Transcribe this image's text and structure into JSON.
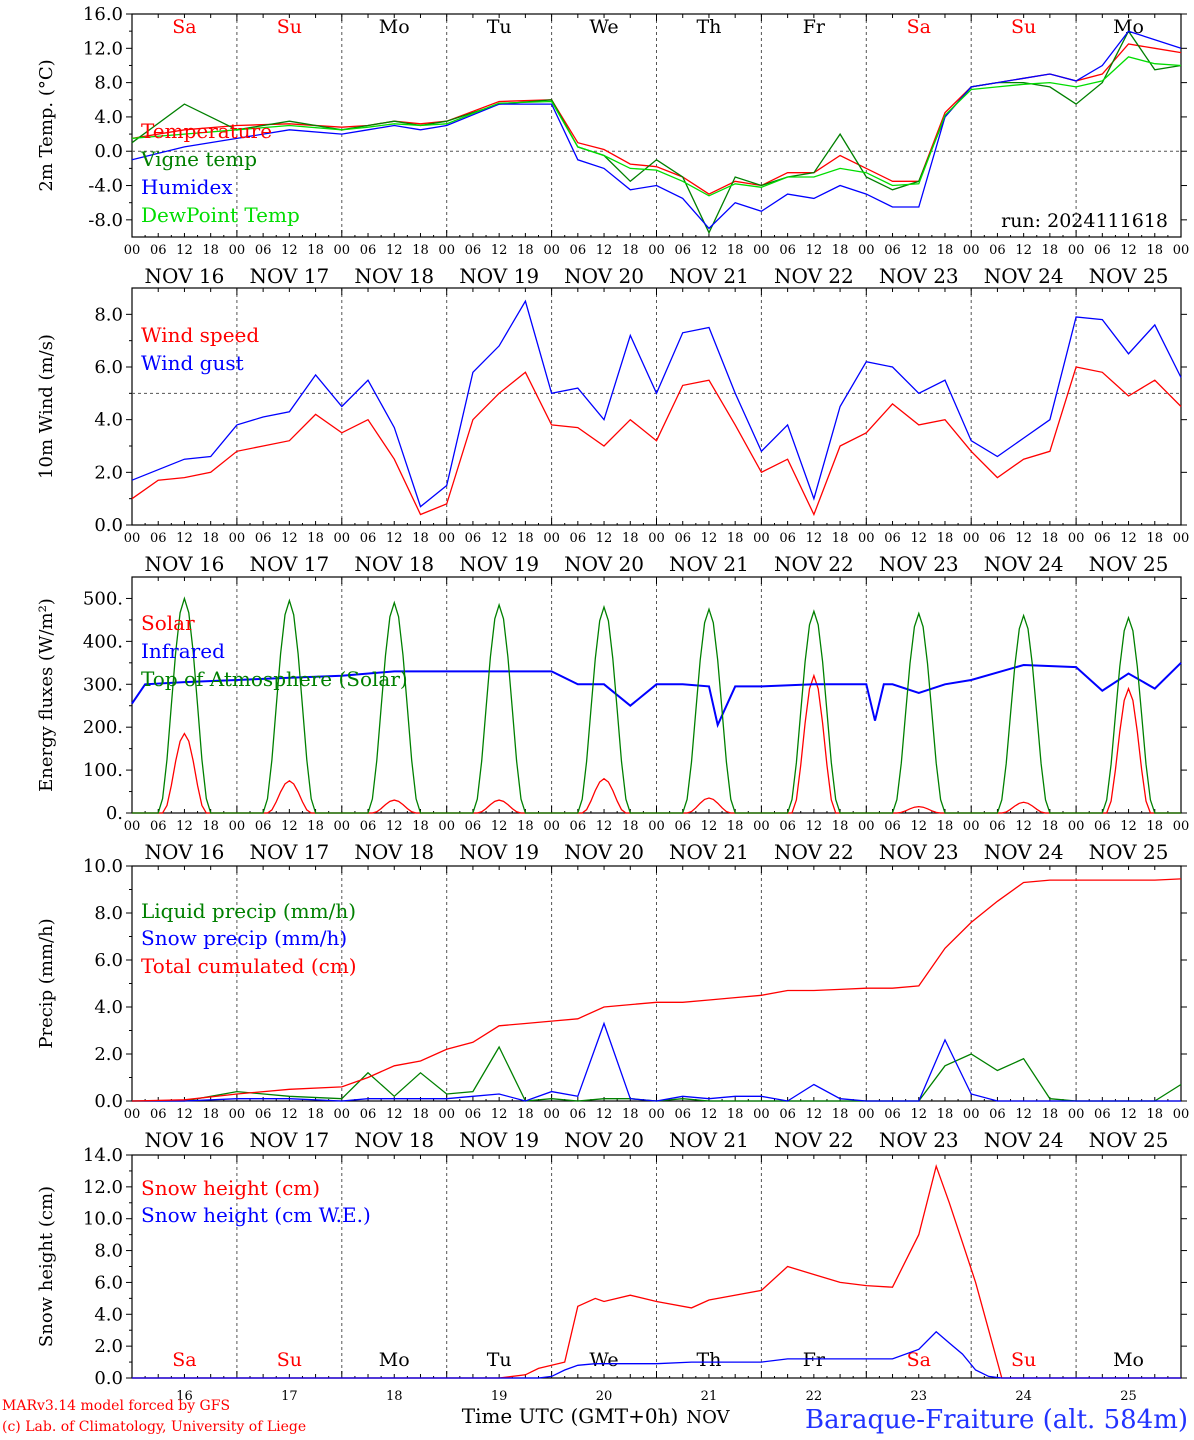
{
  "colors": {
    "red": "#ff0000",
    "green": "#008000",
    "blue": "#0000ff",
    "lime": "#00dd00",
    "grid": "#555555"
  },
  "footer": {
    "model": "MARv3.14 model forced by GFS",
    "lab": "(c) Lab. of Climatology, University of Liege",
    "time_label": "Time UTC (GMT+0h)",
    "month": "NOV",
    "station": "Baraque-Fraiture (alt. 584m)"
  },
  "run_label": "run: 2024111618",
  "days": {
    "abbr": [
      "Sa",
      "Su",
      "Mo",
      "Tu",
      "We",
      "Th",
      "Fr",
      "Sa",
      "Su",
      "Mo"
    ],
    "abbr_colors": [
      "#ff0000",
      "#ff0000",
      "#000000",
      "#000000",
      "#000000",
      "#000000",
      "#000000",
      "#ff0000",
      "#ff0000",
      "#000000"
    ],
    "dates": [
      "NOV 16",
      "NOV 17",
      "NOV 18",
      "NOV 19",
      "NOV 20",
      "NOV 21",
      "NOV 22",
      "NOV 23",
      "NOV 24",
      "NOV 25"
    ],
    "day_numbers": [
      "16",
      "17",
      "18",
      "19",
      "20",
      "21",
      "22",
      "23",
      "24",
      "25"
    ],
    "hour_ticks": [
      "00",
      "06",
      "12",
      "18"
    ],
    "end_tick": "00"
  },
  "chart_data": [
    {
      "type": "line",
      "ylabel": "2m Temp. (°C)",
      "ylim": [
        -10,
        16
      ],
      "yticks": [
        "-8.0",
        "-4.0",
        "0.0",
        "4.0",
        "8.0",
        "12.0",
        "16.0"
      ],
      "ytick_values": [
        -8,
        -4,
        0,
        4,
        8,
        12,
        16
      ],
      "ref_line": 0,
      "x_hours": [
        0,
        12,
        24,
        36,
        48,
        54,
        60,
        66,
        72,
        84,
        96,
        102,
        108,
        114,
        120,
        126,
        132,
        138,
        144,
        150,
        156,
        162,
        168,
        174,
        180,
        186,
        192,
        198,
        204,
        210,
        216,
        222,
        228,
        234,
        240
      ],
      "series": [
        {
          "name": "Temperature",
          "color": "#ff0000",
          "values": [
            1.5,
            2.5,
            3.0,
            3.2,
            2.8,
            3.0,
            3.5,
            3.2,
            3.5,
            5.8,
            6.0,
            1.0,
            0.2,
            -1.5,
            -1.8,
            -3.0,
            -5.0,
            -3.5,
            -4.0,
            -2.5,
            -2.5,
            -0.5,
            -2.0,
            -3.5,
            -3.5,
            4.5,
            7.5,
            8.0,
            8.5,
            9.0,
            8.2,
            9.0,
            12.5,
            12.0,
            11.5
          ]
        },
        {
          "name": "Vigne temp",
          "color": "#008000",
          "values": [
            1.0,
            5.5,
            2.5,
            3.5,
            2.5,
            3.0,
            3.5,
            3.0,
            3.5,
            5.5,
            6.0,
            0.5,
            -0.5,
            -3.5,
            -1.0,
            -3.0,
            -9.5,
            -3.0,
            -4.0,
            -3.0,
            -2.5,
            2.0,
            -3.0,
            -4.5,
            -3.5,
            4.0,
            7.5,
            8.0,
            8.0,
            7.5,
            5.5,
            8.0,
            14.0,
            9.5,
            10.0
          ]
        },
        {
          "name": "Humidex",
          "color": "#0000ff",
          "values": [
            -1.0,
            0.5,
            1.5,
            2.5,
            2.0,
            2.5,
            3.0,
            2.5,
            3.0,
            5.5,
            5.5,
            -1.0,
            -2.0,
            -4.5,
            -4.0,
            -5.5,
            -9.0,
            -6.0,
            -7.0,
            -5.0,
            -5.5,
            -4.0,
            -5.0,
            -6.5,
            -6.5,
            4.0,
            7.5,
            8.0,
            8.5,
            9.0,
            8.2,
            10.0,
            14.0,
            13.0,
            12.0
          ]
        },
        {
          "name": "DewPoint Temp",
          "color": "#00dd00",
          "values": [
            1.5,
            2.0,
            2.5,
            3.0,
            2.5,
            2.8,
            3.2,
            3.0,
            3.2,
            5.6,
            5.8,
            0.5,
            -0.5,
            -2.0,
            -2.2,
            -3.5,
            -5.2,
            -3.8,
            -4.2,
            -3.0,
            -3.0,
            -2.0,
            -2.5,
            -4.0,
            -3.8,
            4.2,
            7.2,
            7.5,
            7.8,
            8.0,
            7.5,
            8.2,
            11.0,
            10.2,
            10.0
          ]
        }
      ]
    },
    {
      "type": "line",
      "ylabel": "10m Wind (m/s)",
      "ylim": [
        0,
        9
      ],
      "yticks": [
        "0.0",
        "2.0",
        "4.0",
        "6.0",
        "8.0"
      ],
      "ytick_values": [
        0,
        2,
        4,
        6,
        8
      ],
      "ref_line": 5,
      "x_hours": [
        0,
        6,
        12,
        18,
        24,
        30,
        36,
        42,
        48,
        54,
        60,
        66,
        72,
        78,
        84,
        90,
        96,
        102,
        108,
        114,
        120,
        126,
        132,
        138,
        144,
        150,
        156,
        162,
        168,
        174,
        180,
        186,
        192,
        198,
        204,
        210,
        216,
        222,
        228,
        234,
        240
      ],
      "series": [
        {
          "name": "Wind speed",
          "color": "#ff0000",
          "values": [
            1.0,
            1.7,
            1.8,
            2.0,
            2.8,
            3.0,
            3.2,
            4.2,
            3.5,
            4.0,
            2.5,
            0.4,
            0.8,
            4.0,
            5.0,
            5.8,
            3.8,
            3.7,
            3.0,
            4.0,
            3.2,
            5.3,
            5.5,
            3.8,
            2.0,
            2.5,
            0.4,
            3.0,
            3.5,
            4.6,
            3.8,
            4.0,
            2.8,
            1.8,
            2.5,
            2.8,
            6.0,
            5.8,
            4.9,
            5.5,
            4.5
          ]
        },
        {
          "name": "Wind gust",
          "color": "#0000ff",
          "values": [
            1.7,
            2.1,
            2.5,
            2.6,
            3.8,
            4.1,
            4.3,
            5.7,
            4.5,
            5.5,
            3.7,
            0.7,
            1.5,
            5.8,
            6.8,
            8.5,
            5.0,
            5.2,
            4.0,
            7.2,
            5.0,
            7.3,
            7.5,
            5.0,
            2.8,
            3.8,
            1.0,
            4.5,
            6.2,
            6.0,
            5.0,
            5.5,
            3.2,
            2.6,
            3.3,
            4.0,
            7.9,
            7.8,
            6.5,
            7.6,
            5.6
          ]
        }
      ]
    },
    {
      "type": "line",
      "ylabel": "Energy fluxes (W/m²)",
      "ylim": [
        0,
        550
      ],
      "yticks": [
        "0.",
        "100.",
        "200.",
        "300.",
        "400.",
        "500."
      ],
      "ytick_values": [
        0,
        100,
        200,
        300,
        400,
        500
      ],
      "series": [
        {
          "name": "Solar",
          "color": "#ff0000",
          "day_peaks": [
            185,
            75,
            30,
            30,
            80,
            35,
            320,
            15,
            25,
            290
          ]
        },
        {
          "name": "Infrared",
          "color": "#0000ff",
          "x_hours": [
            0,
            3,
            12,
            24,
            36,
            48,
            60,
            72,
            84,
            96,
            102,
            108,
            114,
            120,
            126,
            132,
            134,
            138,
            144,
            156,
            168,
            170,
            172,
            174,
            180,
            186,
            192,
            204,
            216,
            222,
            228,
            234,
            240
          ],
          "values": [
            255,
            300,
            305,
            310,
            315,
            320,
            330,
            330,
            330,
            330,
            300,
            300,
            250,
            300,
            300,
            295,
            205,
            295,
            295,
            300,
            300,
            215,
            300,
            300,
            280,
            300,
            310,
            345,
            340,
            285,
            325,
            290,
            350
          ]
        },
        {
          "name": "Top of Atmosphere (Solar)",
          "color": "#008000",
          "day_peaks": [
            500,
            495,
            490,
            485,
            480,
            475,
            470,
            465,
            460,
            455
          ]
        }
      ]
    },
    {
      "type": "line",
      "ylabel": "Precip (mm/h)",
      "ylim": [
        0,
        10
      ],
      "yticks": [
        "0.0",
        "2.0",
        "4.0",
        "6.0",
        "8.0",
        "10.0"
      ],
      "ytick_values": [
        0,
        2,
        4,
        6,
        8,
        10
      ],
      "x_hours": [
        0,
        12,
        24,
        36,
        48,
        54,
        60,
        66,
        72,
        78,
        84,
        90,
        96,
        102,
        108,
        114,
        120,
        126,
        132,
        138,
        144,
        150,
        156,
        162,
        168,
        174,
        180,
        186,
        192,
        198,
        204,
        210,
        216,
        222,
        228,
        234,
        240
      ],
      "series": [
        {
          "name": "Liquid precip (mm/h)",
          "color": "#008000",
          "values": [
            0,
            0,
            0.4,
            0.2,
            0.1,
            1.2,
            0.2,
            1.2,
            0.3,
            0.4,
            2.3,
            0.0,
            0.1,
            0.0,
            0.1,
            0.1,
            0.0,
            0.1,
            0.0,
            0.0,
            0.0,
            0.0,
            0.0,
            0.0,
            0.0,
            0.0,
            0.0,
            1.5,
            2.0,
            1.3,
            1.8,
            0.1,
            0.0,
            0.0,
            0.0,
            0.0,
            0.7
          ]
        },
        {
          "name": "Snow precip (mm/h)",
          "color": "#0000ff",
          "values": [
            0,
            0,
            0.1,
            0.1,
            0.0,
            0.1,
            0.1,
            0.1,
            0.1,
            0.2,
            0.3,
            0.0,
            0.4,
            0.2,
            3.3,
            0.1,
            0.0,
            0.2,
            0.1,
            0.2,
            0.2,
            0.0,
            0.7,
            0.1,
            0.0,
            0.0,
            0.0,
            2.6,
            0.3,
            0.0,
            0.0,
            0.0,
            0.0,
            0.0,
            0.0,
            0.0,
            0.0
          ]
        },
        {
          "name": "Total cumulated (cm)",
          "color": "#ff0000",
          "values": [
            0.0,
            0.05,
            0.3,
            0.5,
            0.6,
            1.0,
            1.5,
            1.7,
            2.2,
            2.5,
            3.2,
            3.3,
            3.4,
            3.5,
            4.0,
            4.1,
            4.2,
            4.2,
            4.3,
            4.4,
            4.5,
            4.7,
            4.7,
            4.75,
            4.8,
            4.8,
            4.9,
            6.5,
            7.6,
            8.5,
            9.3,
            9.4,
            9.4,
            9.4,
            9.4,
            9.4,
            9.45
          ]
        }
      ]
    },
    {
      "type": "line",
      "ylabel": "Snow height (cm)",
      "ylim": [
        0,
        14
      ],
      "yticks": [
        "0.0",
        "2.0",
        "4.0",
        "6.0",
        "8.0",
        "10.0",
        "12.0",
        "14.0"
      ],
      "ytick_values": [
        0,
        2,
        4,
        6,
        8,
        10,
        12,
        14
      ],
      "x_hours": [
        0,
        84,
        90,
        93,
        96,
        99,
        102,
        106,
        108,
        114,
        120,
        128,
        132,
        144,
        150,
        156,
        162,
        168,
        174,
        180,
        184,
        187,
        190,
        193,
        196,
        199,
        204,
        210,
        216,
        240
      ],
      "series": [
        {
          "name": "Snow height (cm)",
          "color": "#ff0000",
          "values": [
            0,
            0,
            0.2,
            0.6,
            0.8,
            1.0,
            4.5,
            5.0,
            4.8,
            5.2,
            4.8,
            4.4,
            4.9,
            5.5,
            7.0,
            6.5,
            6.0,
            5.8,
            5.7,
            9.0,
            13.3,
            11.0,
            8.5,
            6.0,
            3.0,
            0.0,
            0,
            0,
            0,
            0
          ]
        },
        {
          "name": "Snow height (cm W.E.)",
          "color": "#0000ff",
          "values": [
            0,
            0,
            0,
            0,
            0.1,
            0.5,
            0.8,
            0.9,
            0.9,
            0.9,
            0.9,
            1.0,
            1.0,
            1.0,
            1.2,
            1.2,
            1.2,
            1.2,
            1.2,
            1.8,
            2.9,
            2.2,
            1.5,
            0.5,
            0.1,
            0,
            0,
            0,
            0,
            0
          ]
        }
      ]
    }
  ]
}
